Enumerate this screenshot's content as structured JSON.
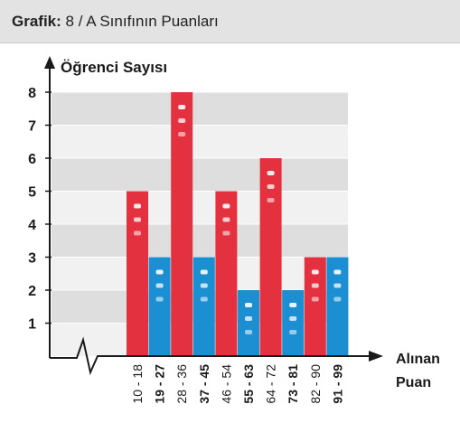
{
  "header": {
    "bold_label": "Grafik:",
    "title": "8 / A Sınıfının Puanları"
  },
  "chart_data": {
    "type": "bar",
    "title": "8 / A Sınıfının Puanları",
    "ylabel": "Öğrenci Sayısı",
    "xlabel_line1": "Alınan",
    "xlabel_line2": "Puan",
    "ylim": [
      0,
      8
    ],
    "yticks": [
      "1",
      "2",
      "3",
      "4",
      "5",
      "6",
      "7",
      "8"
    ],
    "grid": true,
    "categories": [
      "10 - 18",
      "19 - 27",
      "28 - 36",
      "37 - 45",
      "46 - 54",
      "55 - 63",
      "64 - 72",
      "73 - 81",
      "82 - 90",
      "91 - 99"
    ],
    "values": [
      5,
      3,
      8,
      3,
      5,
      2,
      6,
      2,
      3,
      3
    ],
    "bar_colors": [
      "#e3313f",
      "#1b8fd2",
      "#e3313f",
      "#1b8fd2",
      "#e3313f",
      "#1b8fd2",
      "#e3313f",
      "#1b8fd2",
      "#e3313f",
      "#1b8fd2"
    ],
    "bold_categories": [
      false,
      true,
      false,
      true,
      false,
      true,
      false,
      true,
      false,
      true
    ]
  },
  "colors": {
    "red_bar": "#e3313f",
    "blue_bar": "#1b8fd2",
    "band_light": "#f1f1f1",
    "band_dark": "#dedede",
    "axis": "#1a1a1a"
  }
}
